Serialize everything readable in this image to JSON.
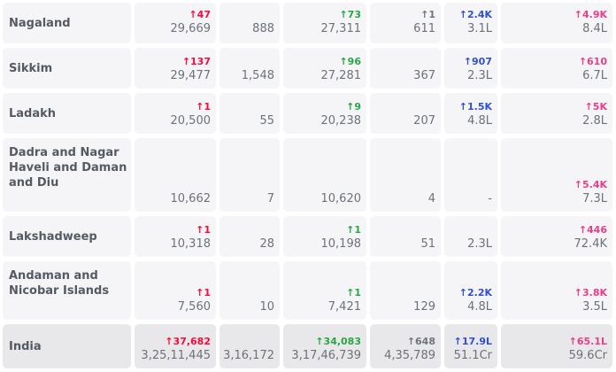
{
  "rows": [
    {
      "state": "Nagaland",
      "confirmed_delta": "↑47",
      "confirmed": "29,669",
      "active": "888",
      "recovered_delta": "↑73",
      "recovered": "27,311",
      "deceased_delta": "↑1",
      "deceased": "611",
      "tested_delta": "↑2.4K",
      "tested": "3.1L",
      "vaccinated_delta": "↑4.9K",
      "vaccinated": "8.4L"
    },
    {
      "state": "Sikkim",
      "confirmed_delta": "↑137",
      "confirmed": "29,477",
      "active": "1,548",
      "recovered_delta": "↑96",
      "recovered": "27,281",
      "deceased_delta": "",
      "deceased": "367",
      "tested_delta": "↑907",
      "tested": "2.3L",
      "vaccinated_delta": "↑610",
      "vaccinated": "6.7L"
    },
    {
      "state": "Ladakh",
      "confirmed_delta": "↑1",
      "confirmed": "20,500",
      "active": "55",
      "recovered_delta": "↑9",
      "recovered": "20,238",
      "deceased_delta": "",
      "deceased": "207",
      "tested_delta": "↑1.5K",
      "tested": "4.8L",
      "vaccinated_delta": "↑5K",
      "vaccinated": "2.8L"
    },
    {
      "state": "Dadra and Nagar Haveli and Daman and Diu",
      "confirmed_delta": "",
      "confirmed": "10,662",
      "active": "7",
      "recovered_delta": "",
      "recovered": "10,620",
      "deceased_delta": "",
      "deceased": "4",
      "tested_delta": "",
      "tested": "-",
      "vaccinated_delta": "↑5.4K",
      "vaccinated": "7.3L"
    },
    {
      "state": "Lakshadweep",
      "confirmed_delta": "↑1",
      "confirmed": "10,318",
      "active": "28",
      "recovered_delta": "↑1",
      "recovered": "10,198",
      "deceased_delta": "",
      "deceased": "51",
      "tested_delta": "",
      "tested": "2.3L",
      "vaccinated_delta": "↑446",
      "vaccinated": "72.4K"
    },
    {
      "state": "Andaman and Nicobar Islands",
      "confirmed_delta": "↑1",
      "confirmed": "7,560",
      "active": "10",
      "recovered_delta": "↑1",
      "recovered": "7,421",
      "deceased_delta": "",
      "deceased": "129",
      "tested_delta": "↑2.2K",
      "tested": "4.8L",
      "vaccinated_delta": "↑3.8K",
      "vaccinated": "3.5L"
    }
  ],
  "total": {
    "state": "India",
    "confirmed_delta": "↑37,682",
    "confirmed": "3,25,11,445",
    "active": "3,16,172",
    "recovered_delta": "↑34,083",
    "recovered": "3,17,46,739",
    "deceased_delta": "↑648",
    "deceased": "4,35,789",
    "tested_delta": "↑17.9L",
    "tested": "51.1Cr",
    "vaccinated_delta": "↑65.1L",
    "vaccinated": "59.6Cr"
  },
  "colors": {
    "confirmed": "#ff073a",
    "recovered": "#28a745",
    "deceased": "#6c757d",
    "tested": "#3050d0",
    "vaccinated": "#e83e8c"
  }
}
